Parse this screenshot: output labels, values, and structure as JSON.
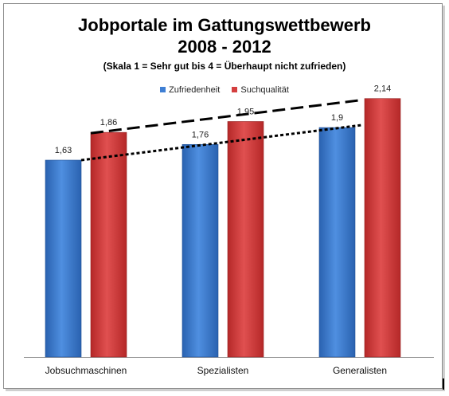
{
  "chart_data": {
    "type": "bar",
    "title": "Jobportale im Gattungswettbewerb",
    "title_line2": "2008 - 2012",
    "subtitle": "(Skala 1 = Sehr gut bis 4 = Überhaupt nicht zufrieden)",
    "categories": [
      "Jobsuchmaschinen",
      "Spezialisten",
      "Generalisten"
    ],
    "series": [
      {
        "name": "Zufriedenheit",
        "values": [
          1.63,
          1.76,
          1.9
        ],
        "labels": [
          "1,63",
          "1,76",
          "1,9"
        ],
        "color": "#3f7fd4"
      },
      {
        "name": "Suchqualität",
        "values": [
          1.86,
          1.95,
          2.14
        ],
        "labels": [
          "1,86",
          "1,95",
          "2,14"
        ],
        "color": "#d43f3f"
      }
    ],
    "ylim": [
      0,
      2.6
    ],
    "legend_position": "top",
    "grid": false,
    "trendlines": [
      {
        "series": "Suchqualität",
        "style": "dashed",
        "from": "Jobsuchmaschinen",
        "to": "Generalisten"
      },
      {
        "series": "Zufriedenheit",
        "style": "dotted",
        "from": "Jobsuchmaschinen",
        "to": "Generalisten"
      }
    ]
  }
}
